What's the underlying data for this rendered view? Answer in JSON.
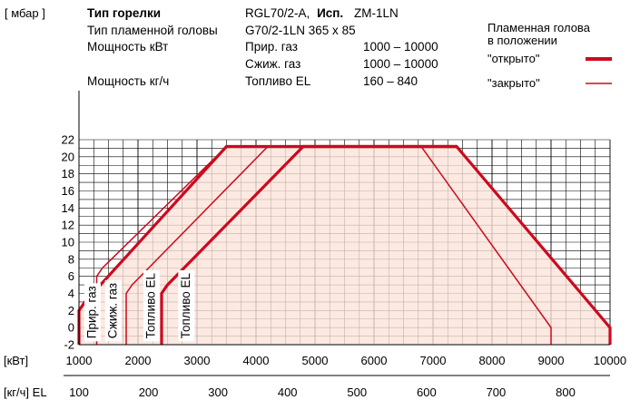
{
  "header": {
    "burner_type_label": "Тип горелки",
    "burner_type_model": "RGL70/2-A,",
    "burner_type_version_label": "Исп.",
    "burner_type_version_value": "ZM-1LN",
    "flame_head_label": "Тип пламенной головы",
    "flame_head_value": "G70/2-1LN 365 x 85",
    "power_kw_label": "Мощность кВт",
    "power_kgh_label": "Мощность кг/ч",
    "fuels": [
      {
        "name": "Прир. газ",
        "range": "1000 – 10000"
      },
      {
        "name": "Сжиж. газ",
        "range": "1000 – 10000"
      },
      {
        "name": "Топливо EL",
        "range": "160 – 840"
      }
    ]
  },
  "legend": {
    "title_line1": "Пламенная голова",
    "title_line2": "в положении",
    "open_label": "\"открыто\"",
    "closed_label": "\"закрыто\""
  },
  "chart_data": {
    "type": "area",
    "ylabel": "[ мбар ]",
    "xlabel": "[кВт]",
    "x2label": "[кг/ч] EL",
    "xlim": [
      1000,
      10000
    ],
    "ylim": [
      -2,
      22
    ],
    "x_ticks": [
      1000,
      2000,
      3000,
      4000,
      5000,
      6000,
      7000,
      8000,
      9000,
      10000
    ],
    "x2_ticks": [
      100,
      200,
      300,
      400,
      500,
      600,
      700,
      800
    ],
    "x2_ticks_kw": [
      1000,
      2178,
      3356,
      4534,
      5712,
      6890,
      8068,
      9246
    ],
    "y_ticks": [
      -2,
      0,
      2,
      4,
      6,
      8,
      10,
      12,
      14,
      16,
      18,
      20,
      22
    ],
    "fill_color": "#fbe3d9",
    "line_color": "#cc0a1e",
    "grid": true,
    "series": [
      {
        "name": "\"открыто\"",
        "style": "thick",
        "x": [
          1000,
          1000,
          1100,
          3500,
          7400,
          10000,
          10000
        ],
        "y": [
          -2,
          2,
          3,
          21.2,
          21.2,
          0,
          -2
        ]
      },
      {
        "name": "\"открыто\"",
        "style": "thick",
        "x": [
          2400,
          2400,
          2500,
          4800,
          7400
        ],
        "y": [
          -2,
          4,
          5,
          21.2,
          21.2
        ]
      },
      {
        "name": "\"закрыто\"",
        "style": "thin",
        "x": [
          1300,
          1300,
          1400,
          3500
        ],
        "y": [
          -2,
          6,
          7,
          21.2
        ]
      },
      {
        "name": "\"закрыто\"",
        "style": "thin",
        "x": [
          1800,
          1800,
          1900,
          4200
        ],
        "y": [
          -2,
          4,
          5,
          21.2
        ]
      },
      {
        "name": "\"закрыто\"",
        "style": "thin",
        "x": [
          6800,
          9000,
          9000
        ],
        "y": [
          21.2,
          0,
          -2
        ]
      }
    ],
    "annotations": [
      {
        "text": "Прир. газ",
        "x": 1230,
        "y": -1.6
      },
      {
        "text": "Сжиж. газ",
        "x": 1580,
        "y": -1.6
      },
      {
        "text": "Топливо EL",
        "x": 2230,
        "y": -1.6
      },
      {
        "text": "Топливо EL",
        "x": 2820,
        "y": -1.6
      }
    ]
  }
}
